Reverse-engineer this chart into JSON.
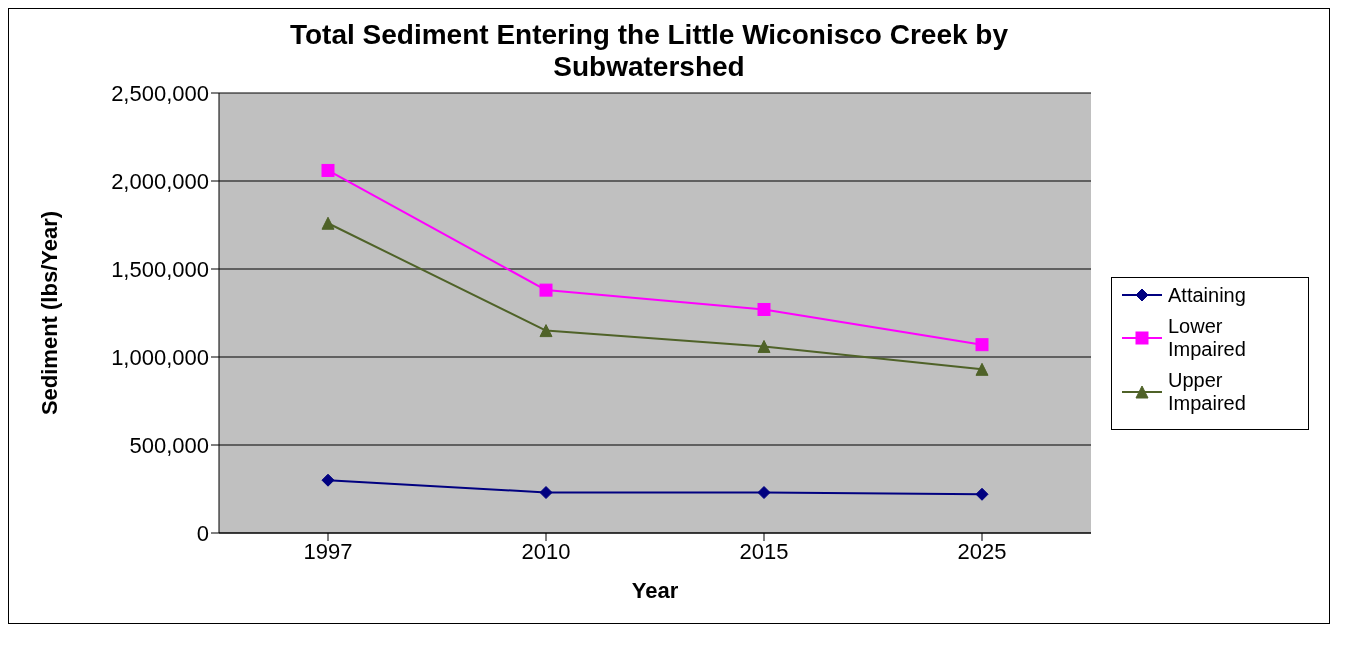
{
  "chart_data": {
    "type": "line",
    "title": "Total Sediment Entering the Little Wiconisco Creek by Subwatershed",
    "xlabel": "Year",
    "ylabel": "Sediment (lbs/Year)",
    "categories": [
      "1997",
      "2010",
      "2015",
      "2025"
    ],
    "series": [
      {
        "name": "Attaining",
        "color": "#000080",
        "marker": "diamond",
        "values": [
          300000,
          230000,
          230000,
          220000
        ]
      },
      {
        "name": "Lower Impaired",
        "color": "#ff00ff",
        "marker": "square",
        "values": [
          2060000,
          1380000,
          1270000,
          1070000
        ]
      },
      {
        "name": "Upper Impaired",
        "color": "#4f6228",
        "marker": "triangle",
        "values": [
          1760000,
          1150000,
          1060000,
          930000
        ]
      }
    ],
    "ylim": [
      0,
      2500000
    ],
    "yticks": [
      0,
      {
        "value": 500000,
        "label": "500,000"
      },
      {
        "value": 1000000,
        "label": "1,000,000"
      },
      {
        "value": 1500000,
        "label": "1,500,000"
      },
      {
        "value": 2000000,
        "label": "2,000,000"
      },
      {
        "value": 2500000,
        "label": "2,500,000"
      }
    ],
    "grid": "y",
    "legend": "right",
    "line_style": "solid"
  }
}
